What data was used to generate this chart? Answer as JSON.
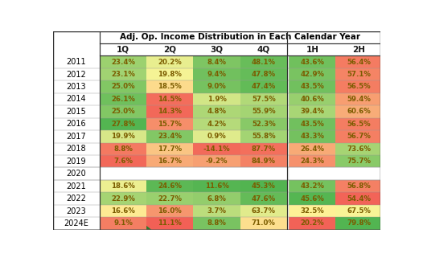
{
  "title": "Adj. Op. Income Distribution in Each Calendar Year",
  "columns": [
    "1Q",
    "2Q",
    "3Q",
    "4Q",
    "1H",
    "2H"
  ],
  "rows": [
    "2011",
    "2012",
    "2013",
    "2014",
    "2015",
    "2016",
    "2017",
    "2018",
    "2019",
    "2020",
    "2021",
    "2022",
    "2023",
    "2024E"
  ],
  "values": [
    [
      23.4,
      20.2,
      8.4,
      48.1,
      43.6,
      56.4
    ],
    [
      23.1,
      19.8,
      9.4,
      47.8,
      42.9,
      57.1
    ],
    [
      25.0,
      18.5,
      9.0,
      47.4,
      43.5,
      56.5
    ],
    [
      26.1,
      14.5,
      1.9,
      57.5,
      40.6,
      59.4
    ],
    [
      25.0,
      14.3,
      4.8,
      55.9,
      39.4,
      60.6
    ],
    [
      27.8,
      15.7,
      4.2,
      52.3,
      43.5,
      56.5
    ],
    [
      19.9,
      23.4,
      0.9,
      55.8,
      43.3,
      56.7
    ],
    [
      8.8,
      17.7,
      -14.1,
      87.7,
      26.4,
      73.6
    ],
    [
      7.6,
      16.7,
      -9.2,
      84.9,
      24.3,
      75.7
    ],
    [
      null,
      null,
      null,
      null,
      null,
      null
    ],
    [
      18.6,
      24.6,
      11.6,
      45.3,
      43.2,
      56.8
    ],
    [
      22.9,
      22.7,
      6.8,
      47.6,
      45.6,
      54.4
    ],
    [
      16.6,
      16.0,
      3.7,
      63.7,
      32.5,
      67.5
    ],
    [
      9.1,
      11.1,
      8.8,
      71.0,
      20.2,
      79.8
    ]
  ],
  "display": [
    [
      "23.4%",
      "20.2%",
      "8.4%",
      "48.1%",
      "43.6%",
      "56.4%"
    ],
    [
      "23.1%",
      "19.8%",
      "9.4%",
      "47.8%",
      "42.9%",
      "57.1%"
    ],
    [
      "25.0%",
      "18.5%",
      "9.0%",
      "47.4%",
      "43.5%",
      "56.5%"
    ],
    [
      "26.1%",
      "14.5%",
      "1.9%",
      "57.5%",
      "40.6%",
      "59.4%"
    ],
    [
      "25.0%",
      "14.3%",
      "4.8%",
      "55.9%",
      "39.4%",
      "60.6%"
    ],
    [
      "27.8%",
      "15.7%",
      "4.2%",
      "52.3%",
      "43.5%",
      "56.5%"
    ],
    [
      "19.9%",
      "23.4%",
      "0.9%",
      "55.8%",
      "43.3%",
      "56.7%"
    ],
    [
      "8.8%",
      "17.7%",
      "-14.1%",
      "87.7%",
      "26.4%",
      "73.6%"
    ],
    [
      "7.6%",
      "16.7%",
      "-9.2%",
      "84.9%",
      "24.3%",
      "75.7%"
    ],
    [
      "",
      "",
      "",
      "",
      "",
      ""
    ],
    [
      "18.6%",
      "24.6%",
      "11.6%",
      "45.3%",
      "43.2%",
      "56.8%"
    ],
    [
      "22.9%",
      "22.7%",
      "6.8%",
      "47.6%",
      "45.6%",
      "54.4%"
    ],
    [
      "16.6%",
      "16.0%",
      "3.7%",
      "63.7%",
      "32.5%",
      "67.5%"
    ],
    [
      "9.1%",
      "11.1%",
      "8.8%",
      "71.0%",
      "20.2%",
      "79.8%"
    ]
  ],
  "col_ranges": [
    [
      7.0,
      28.0,
      false
    ],
    [
      14.0,
      25.0,
      false
    ],
    [
      -15.0,
      12.0,
      false
    ],
    [
      45.0,
      90.0,
      true
    ],
    [
      20.0,
      46.0,
      false
    ],
    [
      54.0,
      80.0,
      false
    ]
  ],
  "red": [
    242,
    96,
    86
  ],
  "yellow": [
    255,
    247,
    153
  ],
  "green": [
    80,
    180,
    80
  ],
  "text_color": "#7b5c00",
  "title_color": "#000000",
  "row_label_color": "#000000",
  "col_label_color": "#1a1a1a",
  "bg_color": "#ffffff",
  "figsize": [
    5.26,
    3.21
  ],
  "dpi": 100,
  "separator_col_idx": 4
}
